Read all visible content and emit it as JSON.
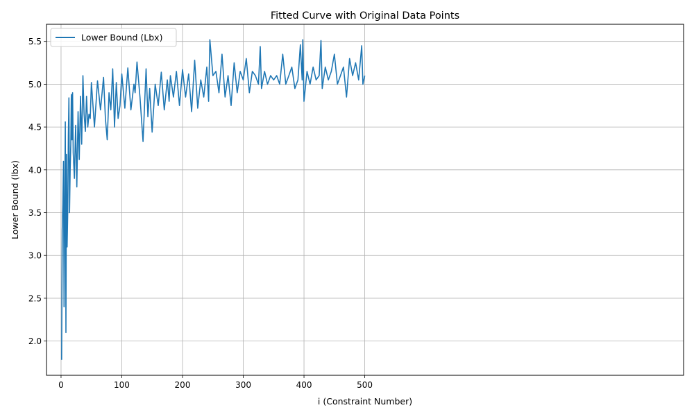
{
  "chart_data": {
    "type": "line",
    "title": "Fitted Curve with Original Data Points",
    "xlabel": "i (Constraint Number)",
    "ylabel": "Lower Bound (lbx)",
    "xlim": [
      -23.95,
      1024.95
    ],
    "ylim": [
      1.6,
      5.7
    ],
    "xticks": [
      0,
      100,
      200,
      300,
      400,
      500
    ],
    "xtick_labels": [
      "0",
      "100",
      "200",
      "300",
      "400",
      "500"
    ],
    "yticks": [
      2.0,
      2.5,
      3.0,
      3.5,
      4.0,
      4.5,
      5.0,
      5.5
    ],
    "ytick_labels": [
      "2.0",
      "2.5",
      "3.0",
      "3.5",
      "4.0",
      "4.5",
      "5.0",
      "5.5"
    ],
    "grid": true,
    "legend_position": "upper left",
    "series": [
      {
        "name": "Lower Bound (Lbx)",
        "color": "#1f77b4",
        "x": [
          1,
          2,
          3,
          4,
          5,
          6,
          7,
          8,
          9,
          10,
          11,
          12,
          13,
          14,
          15,
          16,
          17,
          18,
          19,
          20,
          22,
          24,
          26,
          28,
          30,
          32,
          34,
          36,
          38,
          40,
          42,
          44,
          46,
          48,
          50,
          55,
          60,
          65,
          70,
          73,
          76,
          79,
          82,
          85,
          88,
          91,
          94,
          97,
          100,
          105,
          110,
          115,
          120,
          122,
          125,
          130,
          135,
          140,
          143,
          146,
          150,
          155,
          160,
          165,
          170,
          175,
          178,
          180,
          185,
          190,
          195,
          200,
          205,
          210,
          215,
          220,
          225,
          230,
          235,
          240,
          243,
          245,
          250,
          255,
          260,
          265,
          270,
          275,
          280,
          285,
          290,
          295,
          300,
          305,
          310,
          315,
          320,
          325,
          328,
          330,
          335,
          340,
          345,
          350,
          355,
          360,
          365,
          370,
          375,
          380,
          385,
          390,
          394,
          397,
          398,
          400,
          405,
          410,
          415,
          420,
          425,
          428,
          430,
          435,
          440,
          445,
          450,
          455,
          460,
          465,
          470,
          475,
          480,
          485,
          490,
          495,
          497,
          500
        ],
        "y": [
          1.78,
          3.3,
          3.6,
          4.1,
          2.4,
          3.5,
          4.56,
          2.1,
          4.18,
          3.1,
          3.5,
          4.4,
          4.84,
          3.5,
          4.0,
          4.3,
          4.88,
          4.35,
          4.9,
          4.2,
          3.9,
          4.52,
          3.8,
          4.68,
          4.12,
          4.86,
          4.3,
          5.1,
          4.65,
          4.45,
          4.86,
          4.5,
          4.65,
          4.6,
          5.02,
          4.5,
          5.04,
          4.7,
          5.08,
          4.6,
          4.35,
          4.9,
          4.7,
          5.18,
          4.5,
          5.02,
          4.6,
          4.75,
          5.12,
          4.72,
          5.19,
          4.7,
          5.0,
          4.9,
          5.26,
          4.85,
          4.33,
          5.18,
          4.62,
          4.95,
          4.44,
          5.0,
          4.75,
          5.14,
          4.7,
          5.05,
          4.8,
          5.1,
          4.85,
          5.15,
          4.75,
          5.17,
          4.85,
          5.12,
          4.68,
          5.28,
          4.72,
          5.05,
          4.85,
          5.2,
          4.8,
          5.52,
          5.1,
          5.15,
          4.9,
          5.35,
          4.85,
          5.1,
          4.75,
          5.25,
          4.9,
          5.15,
          5.05,
          5.3,
          4.9,
          5.15,
          5.1,
          5.0,
          5.44,
          4.95,
          5.15,
          5.0,
          5.1,
          5.05,
          5.1,
          5.0,
          5.35,
          5.0,
          5.1,
          5.2,
          4.95,
          5.05,
          5.46,
          5.05,
          5.52,
          4.8,
          5.15,
          5.0,
          5.2,
          5.05,
          5.1,
          5.51,
          4.95,
          5.2,
          5.05,
          5.15,
          5.35,
          5.0,
          5.1,
          5.2,
          4.85,
          5.3,
          5.1,
          5.25,
          5.05,
          5.45,
          5.0,
          5.1
        ]
      }
    ]
  }
}
